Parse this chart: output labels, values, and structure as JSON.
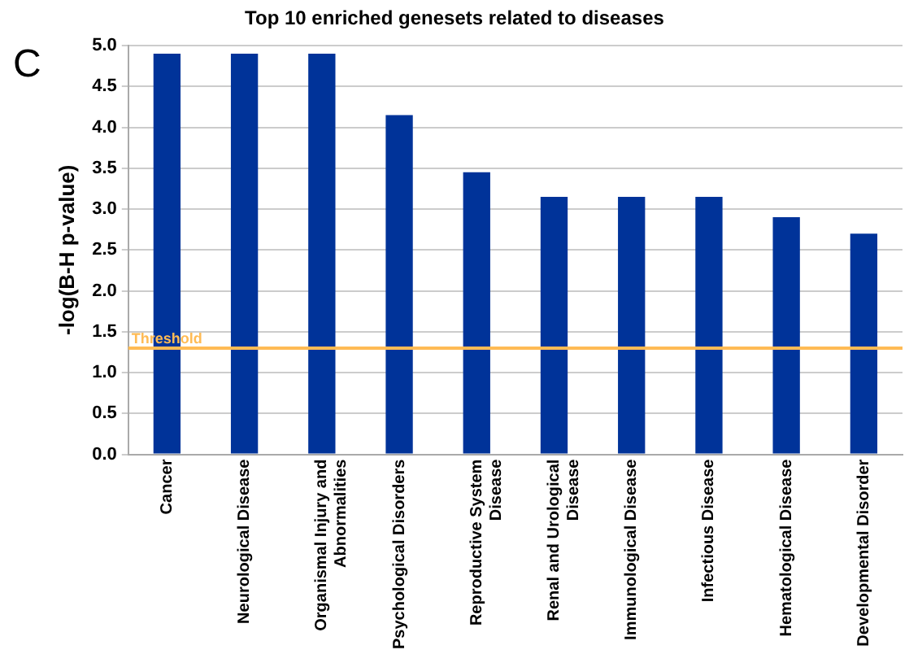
{
  "chart_data": {
    "type": "bar",
    "title": "Top 10 enriched genesets related to diseases",
    "ylabel": "-log(B-H p-value)",
    "categories": [
      "Cancer",
      "Neurological Disease",
      "Organismal Injury and Abnormalities",
      "Psychological Disorders",
      "Reproductive System Disease",
      "Renal and Urological Disease",
      "Immunological Disease",
      "Infectious Disease",
      "Hematological Disease",
      "Developmental Disorder"
    ],
    "values": [
      4.9,
      4.9,
      4.9,
      4.15,
      3.45,
      3.15,
      3.15,
      3.15,
      2.9,
      2.7
    ],
    "color": "#003399",
    "ylim": [
      0,
      5
    ],
    "yticks": [
      {
        "value": 0,
        "label": "0.0"
      },
      {
        "value": 0.5,
        "label": "0.5"
      },
      {
        "value": 1,
        "label": "1.0"
      },
      {
        "value": 1.5,
        "label": "1.5"
      },
      {
        "value": 2,
        "label": "2.0"
      },
      {
        "value": 2.5,
        "label": "2.5"
      },
      {
        "value": 3,
        "label": "3.0"
      },
      {
        "value": 3.5,
        "label": "3.5"
      },
      {
        "value": 4,
        "label": "4.0"
      },
      {
        "value": 4.5,
        "label": "4.5"
      },
      {
        "value": 5,
        "label": "5.0"
      }
    ],
    "grid": "y",
    "ref_lines": [
      {
        "axis": "y",
        "value": 1.3,
        "label": "Threshold",
        "color": "#ffbb55"
      }
    ],
    "annotations": [
      "C"
    ]
  }
}
